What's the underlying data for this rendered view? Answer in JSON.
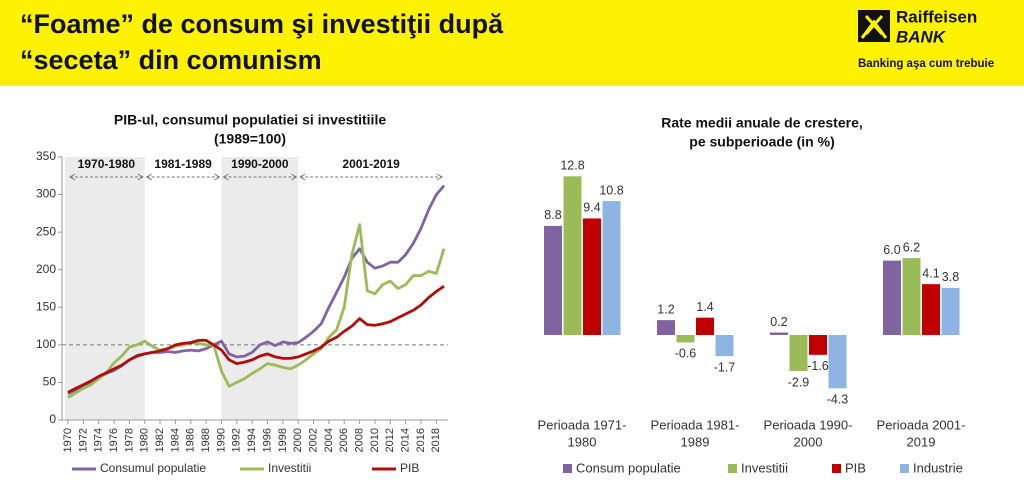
{
  "header": {
    "title": [
      "“Foame” de consum şi investiţii după",
      "“seceta” din comunism"
    ],
    "logo": {
      "name": "Raiffeisen",
      "sub": "BANK",
      "tagline": "Banking aşa cum trebuie"
    }
  },
  "chart_data": [
    {
      "type": "line",
      "title": "PIB-ul, consumul populatiei si investitiile",
      "subtitle": "(1989=100)",
      "x": [
        1970,
        1971,
        1972,
        1973,
        1974,
        1975,
        1976,
        1977,
        1978,
        1979,
        1980,
        1981,
        1982,
        1983,
        1984,
        1985,
        1986,
        1987,
        1988,
        1989,
        1990,
        1991,
        1992,
        1993,
        1994,
        1995,
        1996,
        1997,
        1998,
        1999,
        2000,
        2001,
        2002,
        2003,
        2004,
        2005,
        2006,
        2007,
        2008,
        2009,
        2010,
        2011,
        2012,
        2013,
        2014,
        2015,
        2016,
        2017,
        2018,
        2019
      ],
      "xlim": [
        1970,
        2019
      ],
      "xticks": [
        1970,
        1972,
        1974,
        1976,
        1978,
        1980,
        1982,
        1984,
        1986,
        1988,
        1990,
        1992,
        1994,
        1996,
        1998,
        2000,
        2002,
        2004,
        2006,
        2008,
        2010,
        2012,
        2014,
        2016,
        2018
      ],
      "ylim": [
        0,
        350
      ],
      "yticks": [
        0,
        50,
        100,
        150,
        200,
        250,
        300,
        350
      ],
      "reference_line": 100,
      "periods": [
        {
          "label": "1970-1980",
          "start": 1970,
          "end": 1980,
          "shaded": true
        },
        {
          "label": "1981-1989",
          "start": 1980,
          "end": 1990,
          "shaded": false
        },
        {
          "label": "1990-2000",
          "start": 1990,
          "end": 2000,
          "shaded": true
        },
        {
          "label": "2001-2019",
          "start": 2000,
          "end": 2019,
          "shaded": false
        }
      ],
      "series": [
        {
          "name": "Consumul populatie",
          "color": "#8064a2",
          "values": [
            35,
            40,
            45,
            50,
            56,
            62,
            66,
            72,
            80,
            86,
            88,
            90,
            90,
            91,
            90,
            92,
            93,
            92,
            95,
            100,
            105,
            88,
            84,
            85,
            90,
            100,
            104,
            99,
            104,
            102,
            103,
            110,
            118,
            128,
            150,
            170,
            190,
            215,
            228,
            210,
            202,
            205,
            210,
            210,
            220,
            235,
            255,
            280,
            300,
            312
          ]
        },
        {
          "name": "Investitii",
          "color": "#9bbb59",
          "values": [
            30,
            36,
            42,
            47,
            55,
            63,
            76,
            85,
            97,
            100,
            105,
            98,
            93,
            95,
            98,
            100,
            103,
            102,
            100,
            100,
            65,
            45,
            50,
            55,
            62,
            68,
            75,
            73,
            70,
            68,
            73,
            80,
            88,
            95,
            110,
            120,
            150,
            220,
            260,
            172,
            168,
            180,
            185,
            175,
            180,
            192,
            192,
            198,
            195,
            228
          ]
        },
        {
          "name": "PIB",
          "color": "#b00d0d",
          "values": [
            37,
            42,
            47,
            52,
            58,
            63,
            68,
            73,
            80,
            85,
            88,
            90,
            92,
            95,
            100,
            102,
            103,
            106,
            106,
            100,
            93,
            80,
            75,
            77,
            80,
            85,
            88,
            84,
            82,
            82,
            84,
            88,
            92,
            97,
            105,
            110,
            118,
            125,
            135,
            127,
            126,
            128,
            131,
            136,
            141,
            146,
            153,
            163,
            171,
            178
          ]
        }
      ]
    },
    {
      "type": "bar",
      "title": "Rate medii anuale de crestere,",
      "subtitle": "pe subperioade (in %)",
      "categories": [
        [
          "Perioada 1971-",
          "1980"
        ],
        [
          "Perioada 1981-",
          "1989"
        ],
        [
          "Perioada 1990-",
          "2000"
        ],
        [
          "Perioada 2001-",
          "2019"
        ]
      ],
      "series": [
        {
          "name": "Consum populatie",
          "color": "#8064a2",
          "values": [
            8.8,
            1.2,
            0.2,
            6.0
          ],
          "value_labels": [
            "8.8",
            "1.2",
            "0.2",
            "6.0"
          ]
        },
        {
          "name": "Investitii",
          "color": "#9bbb59",
          "values": [
            12.8,
            -0.6,
            -2.9,
            6.2
          ],
          "value_labels": [
            "12.8",
            "-0.6",
            "-2.9",
            "6.2"
          ]
        },
        {
          "name": "PIB",
          "color": "#c00000",
          "values": [
            9.4,
            1.4,
            -1.6,
            4.1
          ],
          "value_labels": [
            "9.4",
            "1.4",
            "-1.6",
            "4.1"
          ]
        },
        {
          "name": "Industrie",
          "color": "#8db4e2",
          "values": [
            10.8,
            -1.7,
            -4.3,
            3.8
          ],
          "value_labels": [
            "10.8",
            "-1.7",
            "-4.3",
            "3.8"
          ]
        }
      ]
    }
  ]
}
